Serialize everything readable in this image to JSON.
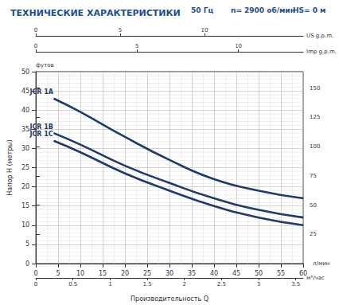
{
  "chart_data": {
    "type": "line",
    "title": "ТЕХНИЧЕСКИЕ ХАРАКТЕРИСТИКИ",
    "annotations": [
      "50 Гц",
      "n= 2900 об/мин",
      "HS= 0 м"
    ],
    "xlabel": "Производительность Q",
    "x_unit_label": "л/мин",
    "ylabel": "Напор H (метры)",
    "xlim": [
      0,
      60
    ],
    "xticks": [
      0,
      5,
      10,
      15,
      20,
      25,
      30,
      35,
      40,
      45,
      50,
      55,
      60
    ],
    "ylim": [
      0,
      50
    ],
    "yticks": [
      0,
      5,
      10,
      15,
      20,
      25,
      30,
      35,
      40,
      45,
      50
    ],
    "y2label": "футов",
    "y2lim": [
      0,
      164.04
    ],
    "y2ticks": [
      25,
      50,
      75,
      100,
      125,
      150
    ],
    "secondary_x_axes": [
      {
        "label": "м³/час",
        "xlim": [
          0,
          3.6
        ],
        "xticks": [
          0,
          0.5,
          1,
          1.5,
          2,
          2.5,
          3,
          3.5
        ]
      },
      {
        "label": "Imp g.p.m.",
        "xlim": [
          0,
          13.2
        ],
        "xticks": [
          0,
          5,
          10
        ]
      },
      {
        "label": "US g.p.m.",
        "xlim": [
          0,
          15.85
        ],
        "xticks": [
          0,
          5,
          10
        ]
      }
    ],
    "grid": true,
    "x": [
      4,
      10,
      20,
      30,
      40,
      50,
      60
    ],
    "series": [
      {
        "name": "JCR 1A",
        "color": "#1f3a6b",
        "values": [
          43,
          39.5,
          33,
          27,
          22,
          19,
          17
        ]
      },
      {
        "name": "JCR 1B",
        "color": "#1f3a6b",
        "values": [
          34,
          31,
          25.5,
          21,
          17,
          14,
          12
        ]
      },
      {
        "name": "JCR 1C",
        "color": "#1f3a6b",
        "values": [
          32,
          29,
          23.5,
          19,
          15,
          12,
          10
        ]
      }
    ]
  }
}
